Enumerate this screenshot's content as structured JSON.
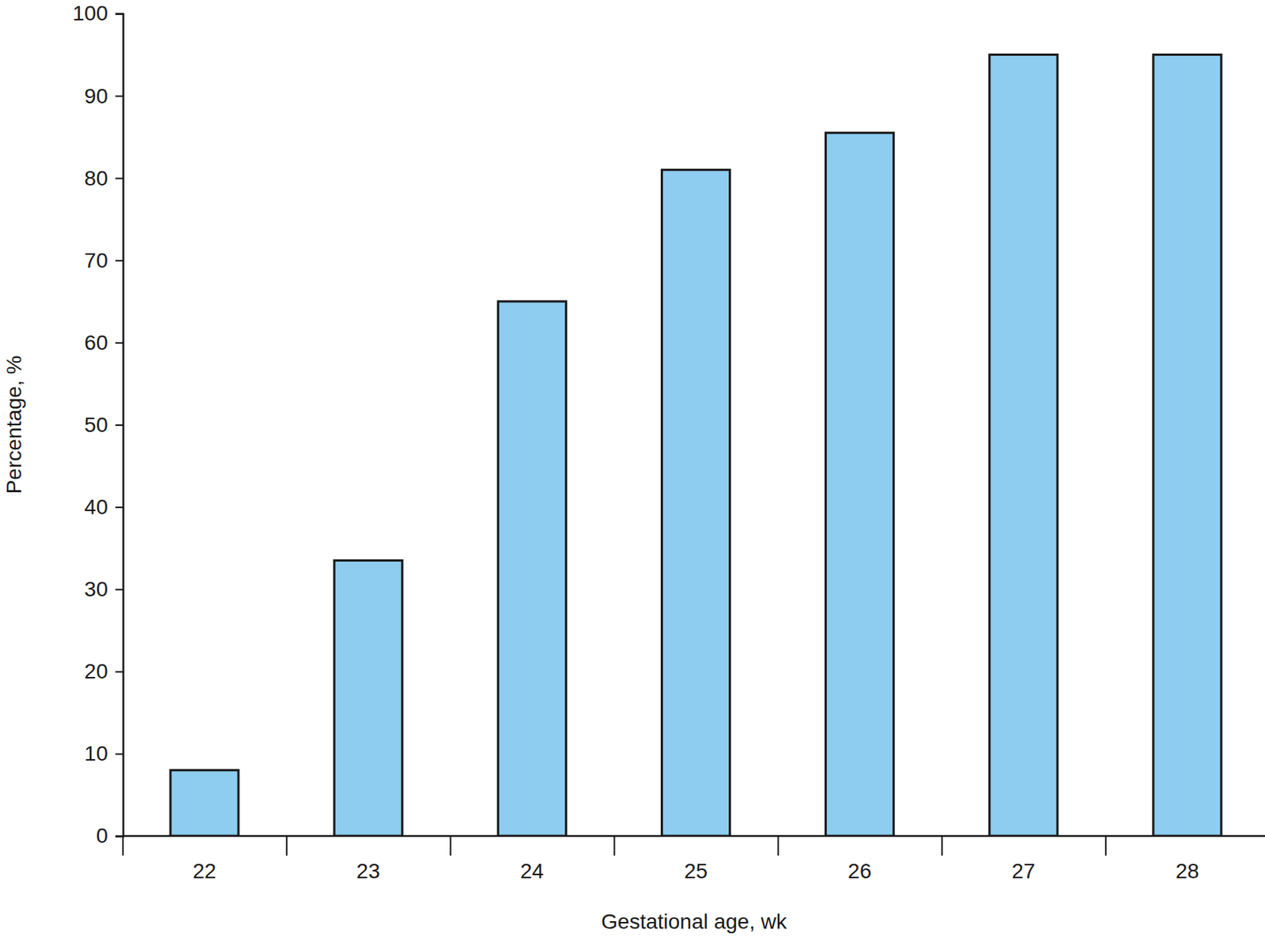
{
  "chart_data": {
    "type": "bar",
    "categories": [
      "22",
      "23",
      "24",
      "25",
      "26",
      "27",
      "28"
    ],
    "values": [
      8,
      33.5,
      65,
      81,
      85.5,
      95,
      95
    ],
    "color": "#8ecdf0",
    "x_label": "Gestational age, wk",
    "y_label": "Percentage, %",
    "ylim": [
      0,
      100
    ],
    "yticks": [
      0,
      10,
      20,
      30,
      40,
      50,
      60,
      70,
      80,
      90,
      100
    ],
    "grid": false
  }
}
